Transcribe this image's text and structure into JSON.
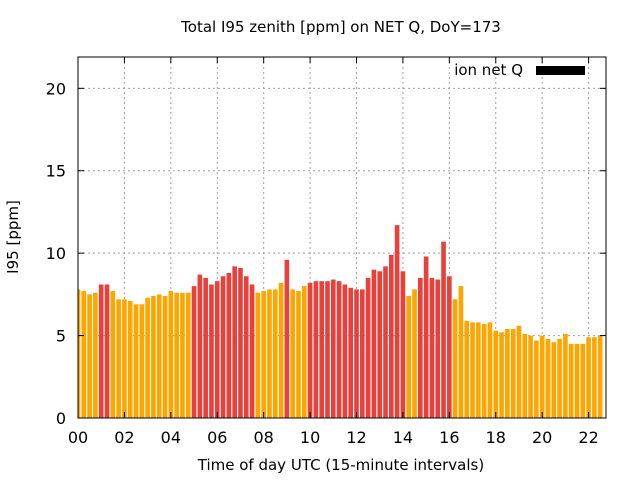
{
  "colors": {
    "orange": "#ffa500",
    "red": "#e8413c",
    "legend_swatch": "#000000",
    "grid": "#a0a0a0"
  },
  "chart_data": {
    "type": "bar",
    "title": "Total I95 zenith [ppm] on NET Q, DoY=173",
    "xlabel": "Time of day UTC (15-minute intervals)",
    "ylabel": "I95 [ppm]",
    "xlim": [
      0,
      22.75
    ],
    "ylim": [
      0,
      21.9
    ],
    "x_ticks": [
      "00",
      "02",
      "04",
      "06",
      "08",
      "10",
      "12",
      "14",
      "16",
      "18",
      "20",
      "22"
    ],
    "y_ticks": [
      "0",
      "5",
      "10",
      "15",
      "20"
    ],
    "grid": true,
    "legend": {
      "label": "ion net Q",
      "position": "top-right"
    },
    "interval_hours": 0.25,
    "values": [
      7.8,
      7.7,
      7.5,
      7.6,
      8.1,
      8.1,
      7.7,
      7.2,
      7.2,
      7.1,
      6.9,
      6.9,
      7.3,
      7.4,
      7.5,
      7.4,
      7.7,
      7.6,
      7.6,
      7.6,
      8.0,
      8.7,
      8.5,
      8.1,
      8.3,
      8.6,
      8.8,
      9.2,
      9.1,
      8.6,
      8.1,
      7.6,
      7.7,
      7.8,
      7.8,
      8.2,
      9.6,
      7.8,
      7.7,
      8.0,
      8.2,
      8.3,
      8.3,
      8.3,
      8.4,
      8.3,
      8.1,
      7.9,
      7.8,
      7.8,
      8.5,
      9.0,
      8.9,
      9.2,
      9.9,
      11.7,
      8.9,
      7.4,
      7.8,
      8.5,
      9.8,
      8.5,
      8.4,
      10.7,
      8.6,
      7.2,
      8.0,
      5.9,
      5.8,
      5.8,
      5.7,
      5.8,
      5.3,
      5.2,
      5.4,
      5.4,
      5.6,
      5.1,
      5.0,
      4.7,
      5.0,
      4.8,
      4.6,
      4.8,
      5.1,
      4.5,
      4.5,
      4.5,
      4.9,
      4.9,
      5.0
    ],
    "highlight": [
      0,
      0,
      0,
      0,
      1,
      1,
      0,
      0,
      0,
      0,
      0,
      0,
      0,
      0,
      0,
      0,
      0,
      0,
      0,
      0,
      1,
      1,
      1,
      1,
      1,
      1,
      1,
      1,
      1,
      1,
      1,
      0,
      0,
      0,
      0,
      0,
      1,
      0,
      0,
      0,
      1,
      1,
      1,
      1,
      1,
      1,
      1,
      1,
      1,
      1,
      1,
      1,
      1,
      1,
      1,
      1,
      1,
      0,
      0,
      1,
      1,
      1,
      1,
      1,
      1,
      0,
      0,
      0,
      0,
      0,
      0,
      0,
      0,
      0,
      0,
      0,
      0,
      0,
      0,
      0,
      0,
      0,
      0,
      0,
      0,
      0,
      0,
      0,
      0,
      0,
      0
    ]
  }
}
